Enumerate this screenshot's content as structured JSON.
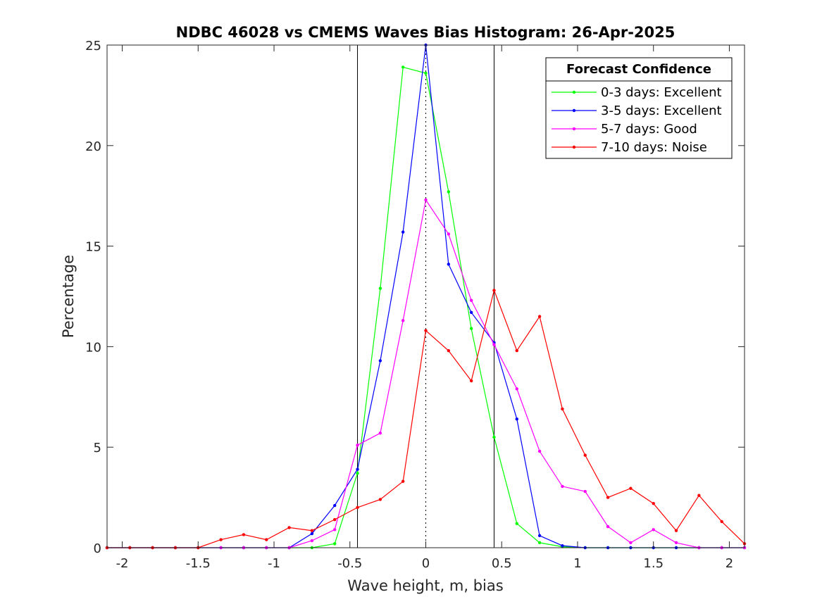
{
  "chart_data": {
    "type": "line",
    "title": "NDBC 46028 vs CMEMS Waves Bias Histogram: 26-Apr-2025",
    "xlabel": "Wave height, m, bias",
    "ylabel": "Percentage",
    "xlim": [
      -2.1,
      2.1
    ],
    "ylim": [
      0,
      25
    ],
    "xticks": [
      -2,
      -1.5,
      -1,
      -0.5,
      0,
      0.5,
      1,
      1.5,
      2
    ],
    "xtick_labels": [
      "-2",
      "-1.5",
      "-1",
      "-0.5",
      "0",
      "0.5",
      "1",
      "1.5",
      "2"
    ],
    "yticks": [
      0,
      5,
      10,
      15,
      20,
      25
    ],
    "ytick_labels": [
      "0",
      "5",
      "10",
      "15",
      "20",
      "25"
    ],
    "reference_lines": [
      {
        "x": -0.45,
        "style": "solid",
        "color": "#000000"
      },
      {
        "x": 0,
        "style": "dotted",
        "color": "#000000"
      },
      {
        "x": 0.45,
        "style": "solid",
        "color": "#000000"
      }
    ],
    "legend": {
      "title": "Forecast Confidence",
      "position": "top-right"
    },
    "x": [
      -2.1,
      -1.95,
      -1.8,
      -1.65,
      -1.5,
      -1.35,
      -1.2,
      -1.05,
      -0.9,
      -0.75,
      -0.6,
      -0.45,
      -0.3,
      -0.15,
      0,
      0.15,
      0.3,
      0.45,
      0.6,
      0.75,
      0.9,
      1.05,
      1.2,
      1.35,
      1.5,
      1.65,
      1.8,
      1.95,
      2.1
    ],
    "series": [
      {
        "name": "0-3 days: Excellent",
        "color": "#00ff00",
        "values": [
          0,
          0,
          0,
          0,
          0,
          0,
          0,
          0,
          0,
          0,
          0.2,
          3.7,
          12.9,
          23.9,
          23.6,
          17.7,
          10.9,
          5.5,
          1.2,
          0.25,
          0.05,
          0,
          0,
          0,
          0,
          0,
          0,
          0,
          0
        ]
      },
      {
        "name": "3-5 days: Excellent",
        "color": "#0000ff",
        "values": [
          0,
          0,
          0,
          0,
          0,
          0,
          0,
          0,
          0,
          0.7,
          2.1,
          3.9,
          9.3,
          15.7,
          25.0,
          14.1,
          11.7,
          10.2,
          6.4,
          0.6,
          0.1,
          0,
          0,
          0,
          0,
          0,
          0,
          0,
          0
        ]
      },
      {
        "name": "5-7 days: Good",
        "color": "#ff00ff",
        "values": [
          0,
          0,
          0,
          0,
          0,
          0,
          0,
          0,
          0,
          0.35,
          0.9,
          5.1,
          5.7,
          11.3,
          17.3,
          15.6,
          12.3,
          10.1,
          7.9,
          4.8,
          3.05,
          2.8,
          1.05,
          0.25,
          0.9,
          0.25,
          0,
          0,
          0
        ]
      },
      {
        "name": "7-10 days: Noise",
        "color": "#ff0000",
        "values": [
          0,
          0,
          0,
          0,
          0,
          0.4,
          0.65,
          0.4,
          1.0,
          0.85,
          1.4,
          2.0,
          2.4,
          3.3,
          10.8,
          9.8,
          8.3,
          12.8,
          9.8,
          11.5,
          6.9,
          4.6,
          2.5,
          2.95,
          2.2,
          0.85,
          2.6,
          1.3,
          0.2
        ]
      }
    ]
  }
}
